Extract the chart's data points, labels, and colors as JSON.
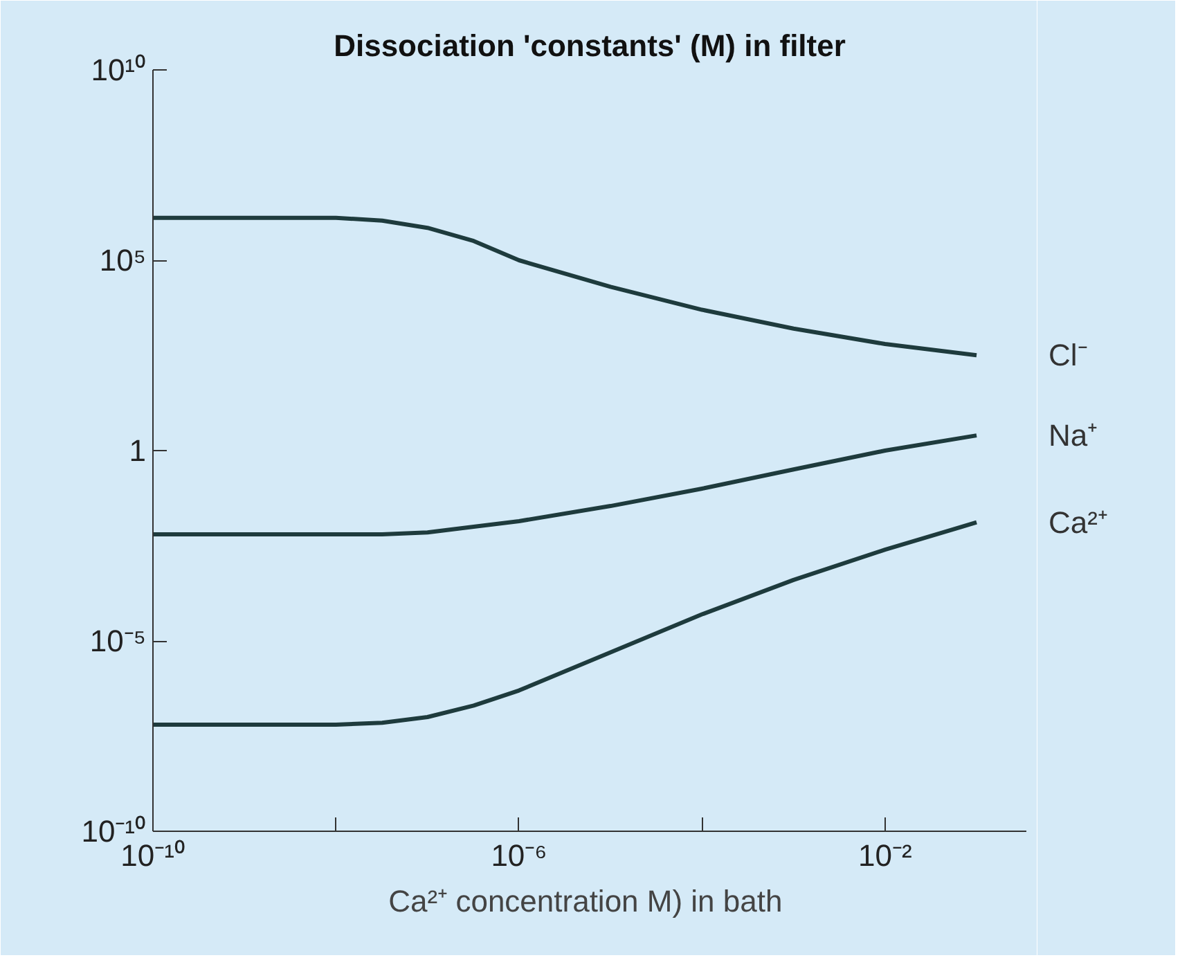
{
  "chart_data": {
    "type": "line",
    "title": "Dissociation 'constants' (M) in filter",
    "xlabel": "Ca²⁺ concentration  M) in bath",
    "log": "xy",
    "grid": false,
    "marker": "none",
    "line_style": "solid",
    "x": [
      1e-10,
      1e-09,
      1e-08,
      3.2e-08,
      1e-07,
      3.2e-07,
      1e-06,
      1e-05,
      0.0001,
      0.001,
      0.01,
      0.1
    ],
    "xlim": [
      1e-10,
      0.35
    ],
    "ylim": [
      1e-10,
      10000000000.0
    ],
    "xticks": [
      {
        "value": 1e-10,
        "label": "10⁻¹⁰"
      },
      {
        "value": 1e-08,
        "label": null
      },
      {
        "value": 1e-06,
        "label": "10⁻⁶"
      },
      {
        "value": 0.0001,
        "label": null
      },
      {
        "value": 0.01,
        "label": "10⁻²"
      }
    ],
    "yticks": [
      {
        "value": 1e-10,
        "label": "10⁻¹⁰"
      },
      {
        "value": 1e-05,
        "label": "10⁻⁵"
      },
      {
        "value": 1,
        "label": "1"
      },
      {
        "value": 100000.0,
        "label": "10⁵"
      },
      {
        "value": 10000000000.0,
        "label": "10¹⁰"
      }
    ],
    "series": [
      {
        "name": "Cl⁻",
        "color": "#1e3b3d",
        "values": [
          1300000.0,
          1300000.0,
          1300000.0,
          1100000.0,
          710000.0,
          320000.0,
          100000.0,
          20000.0,
          5000.0,
          1600.0,
          630,
          320
        ]
      },
      {
        "name": "Na⁺",
        "color": "#1e3b3d",
        "values": [
          0.0063,
          0.0063,
          0.0063,
          0.0063,
          0.0071,
          0.01,
          0.014,
          0.035,
          0.1,
          0.32,
          1,
          2.5
        ]
      },
      {
        "name": "Ca²⁺",
        "color": "#1e3b3d",
        "values": [
          6.3e-08,
          6.3e-08,
          6.3e-08,
          7.1e-08,
          1e-07,
          2e-07,
          5e-07,
          5e-06,
          5e-05,
          0.0004,
          0.0025,
          0.013
        ]
      }
    ]
  }
}
